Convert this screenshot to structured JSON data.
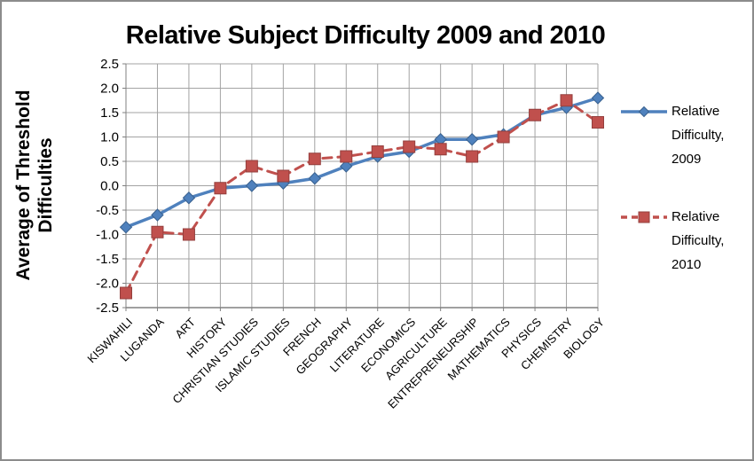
{
  "window": {
    "background": "#ffffff",
    "border_color": "#8c8c8c"
  },
  "chart_data": {
    "type": "line",
    "title": "Relative Subject Difficulty 2009 and 2010",
    "xlabel": "",
    "ylabel": "Average of Threshold Difficulties",
    "ylabel_lines": [
      "Average of Threshold",
      "Difficulties"
    ],
    "categories": [
      "KISWAHILI",
      "LUGANDA",
      "ART",
      "HISTORY",
      "CHRISTIAN STUDIES",
      "ISLAMIC STUDIES",
      "FRENCH",
      "GEOGRAPHY",
      "LITERATURE",
      "ECONOMICS",
      "AGRICULTURE",
      "ENTREPRENEURSHIP",
      "MATHEMATICS",
      "PHYSICS",
      "CHEMISTRY",
      "BIOLOGY"
    ],
    "series": [
      {
        "name": "Relative Difficulty, 2009",
        "color": "#4F81BD",
        "marker_border": "#39618f",
        "marker": "diamond",
        "line_style": "solid",
        "values": [
          -0.85,
          -0.6,
          -0.25,
          -0.05,
          0.0,
          0.05,
          0.15,
          0.4,
          0.6,
          0.7,
          0.95,
          0.95,
          1.05,
          1.45,
          1.6,
          1.8
        ]
      },
      {
        "name": "Relative Difficulty, 2010",
        "color": "#C0504D",
        "marker_border": "#943f3d",
        "marker": "square",
        "line_style": "dashed",
        "values": [
          -2.2,
          -0.95,
          -1.0,
          -0.05,
          0.4,
          0.2,
          0.55,
          0.6,
          0.7,
          0.8,
          0.75,
          0.6,
          1.0,
          1.45,
          1.75,
          1.3
        ]
      }
    ],
    "ylim": [
      -2.5,
      2.5
    ],
    "ytick_step": 0.5,
    "ytick_labels": [
      "2.5",
      "2.0",
      "1.5",
      "1.0",
      "0.5",
      "0.0",
      "-0.5",
      "-1.0",
      "-1.5",
      "-2.0",
      "-2.5"
    ],
    "grid": "both",
    "gridline_color": "#a3a3a3",
    "axis_color": "#808080",
    "category_axis_mode": "on-tick-marks",
    "legend_position": "right"
  }
}
